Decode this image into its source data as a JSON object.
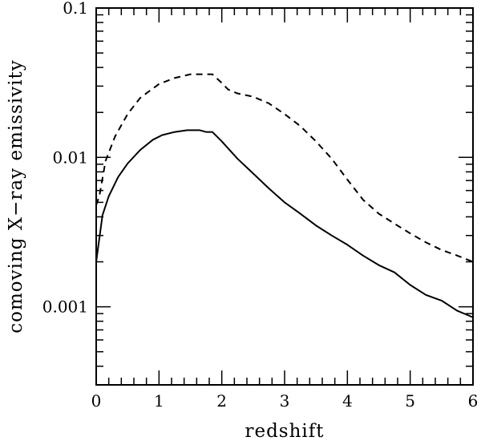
{
  "chart_data": {
    "type": "line",
    "title": "",
    "xlabel": "redshift",
    "ylabel": "comoving X−ray emissivity",
    "xlim": [
      0,
      6
    ],
    "ylim": [
      0.0003,
      0.1
    ],
    "y_scale": "log",
    "grid": false,
    "legend": "none",
    "x_ticks": [
      0,
      1,
      2,
      3,
      4,
      5,
      6
    ],
    "x_tick_labels": [
      "0",
      "1",
      "2",
      "3",
      "4",
      "5",
      "6"
    ],
    "y_ticks": [
      0.001,
      0.01,
      0.1
    ],
    "y_tick_labels": [
      "0.001",
      "0.01",
      "0.1"
    ],
    "series": [
      {
        "style": "solid",
        "color": "#000000",
        "x": [
          0,
          0.1,
          0.2,
          0.35,
          0.5,
          0.7,
          0.9,
          1.05,
          1.25,
          1.45,
          1.65,
          1.75,
          1.85,
          2.0,
          2.25,
          2.5,
          2.75,
          3.0,
          3.25,
          3.5,
          3.75,
          4.0,
          4.25,
          4.5,
          4.75,
          5.0,
          5.25,
          5.5,
          5.75,
          6.0
        ],
        "y": [
          0.002,
          0.0041,
          0.0055,
          0.0074,
          0.0091,
          0.0112,
          0.0131,
          0.0141,
          0.0148,
          0.0152,
          0.0152,
          0.0148,
          0.0148,
          0.0128,
          0.0098,
          0.0078,
          0.0062,
          0.005,
          0.0042,
          0.0035,
          0.003,
          0.0026,
          0.0022,
          0.0019,
          0.0017,
          0.0014,
          0.0012,
          0.0011,
          0.00094,
          0.00085
        ]
      },
      {
        "style": "dashed",
        "color": "#000000",
        "x": [
          0,
          0.05,
          0.15,
          0.3,
          0.5,
          0.7,
          1.0,
          1.25,
          1.5,
          1.75,
          1.85,
          2.0,
          2.1,
          2.25,
          2.5,
          2.75,
          3.0,
          3.25,
          3.5,
          3.75,
          4.0,
          4.25,
          4.5,
          4.75,
          5.0,
          5.25,
          5.5,
          5.75,
          6.0
        ],
        "y": [
          0.0048,
          0.0055,
          0.0095,
          0.0138,
          0.0195,
          0.025,
          0.031,
          0.034,
          0.036,
          0.036,
          0.036,
          0.0315,
          0.0285,
          0.0268,
          0.0255,
          0.023,
          0.0195,
          0.0162,
          0.0128,
          0.0098,
          0.0071,
          0.0052,
          0.0042,
          0.0036,
          0.0031,
          0.0027,
          0.0024,
          0.0022,
          0.002
        ]
      }
    ]
  }
}
